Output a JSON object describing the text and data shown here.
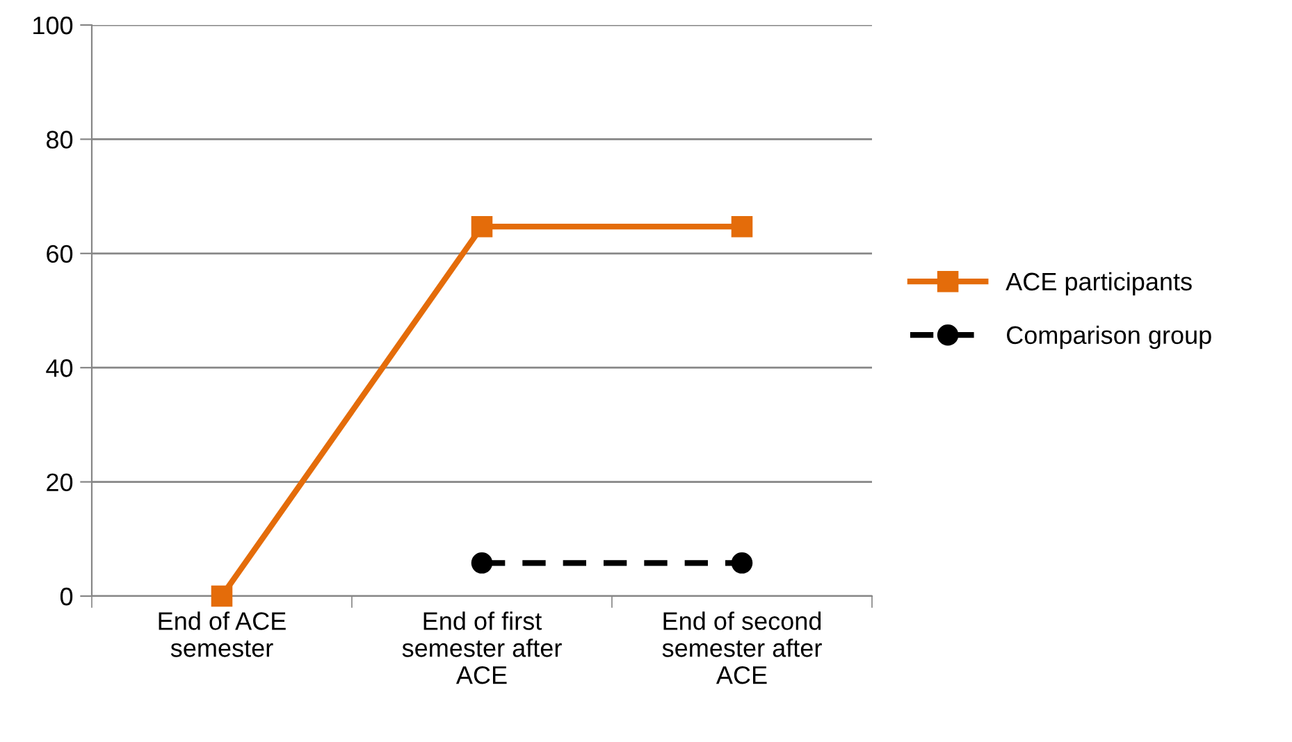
{
  "chart_data": {
    "type": "line",
    "categories": [
      "End of ACE\nsemester",
      "End of first\nsemester after\nACE",
      "End of second\nsemester after\nACE"
    ],
    "series": [
      {
        "name": "ACE participants",
        "color": "#e46c0a",
        "values": [
          0,
          64.7,
          64.7
        ],
        "marker": "square",
        "line_style": "solid"
      },
      {
        "name": "Comparison group",
        "color": "#000000",
        "values": [
          null,
          5.8,
          5.8
        ],
        "marker": "circle",
        "line_style": "dashed"
      }
    ],
    "ylim": [
      0,
      100
    ],
    "yticks": [
      0,
      20,
      40,
      60,
      80,
      100
    ],
    "grid": "y",
    "legend": "right"
  }
}
